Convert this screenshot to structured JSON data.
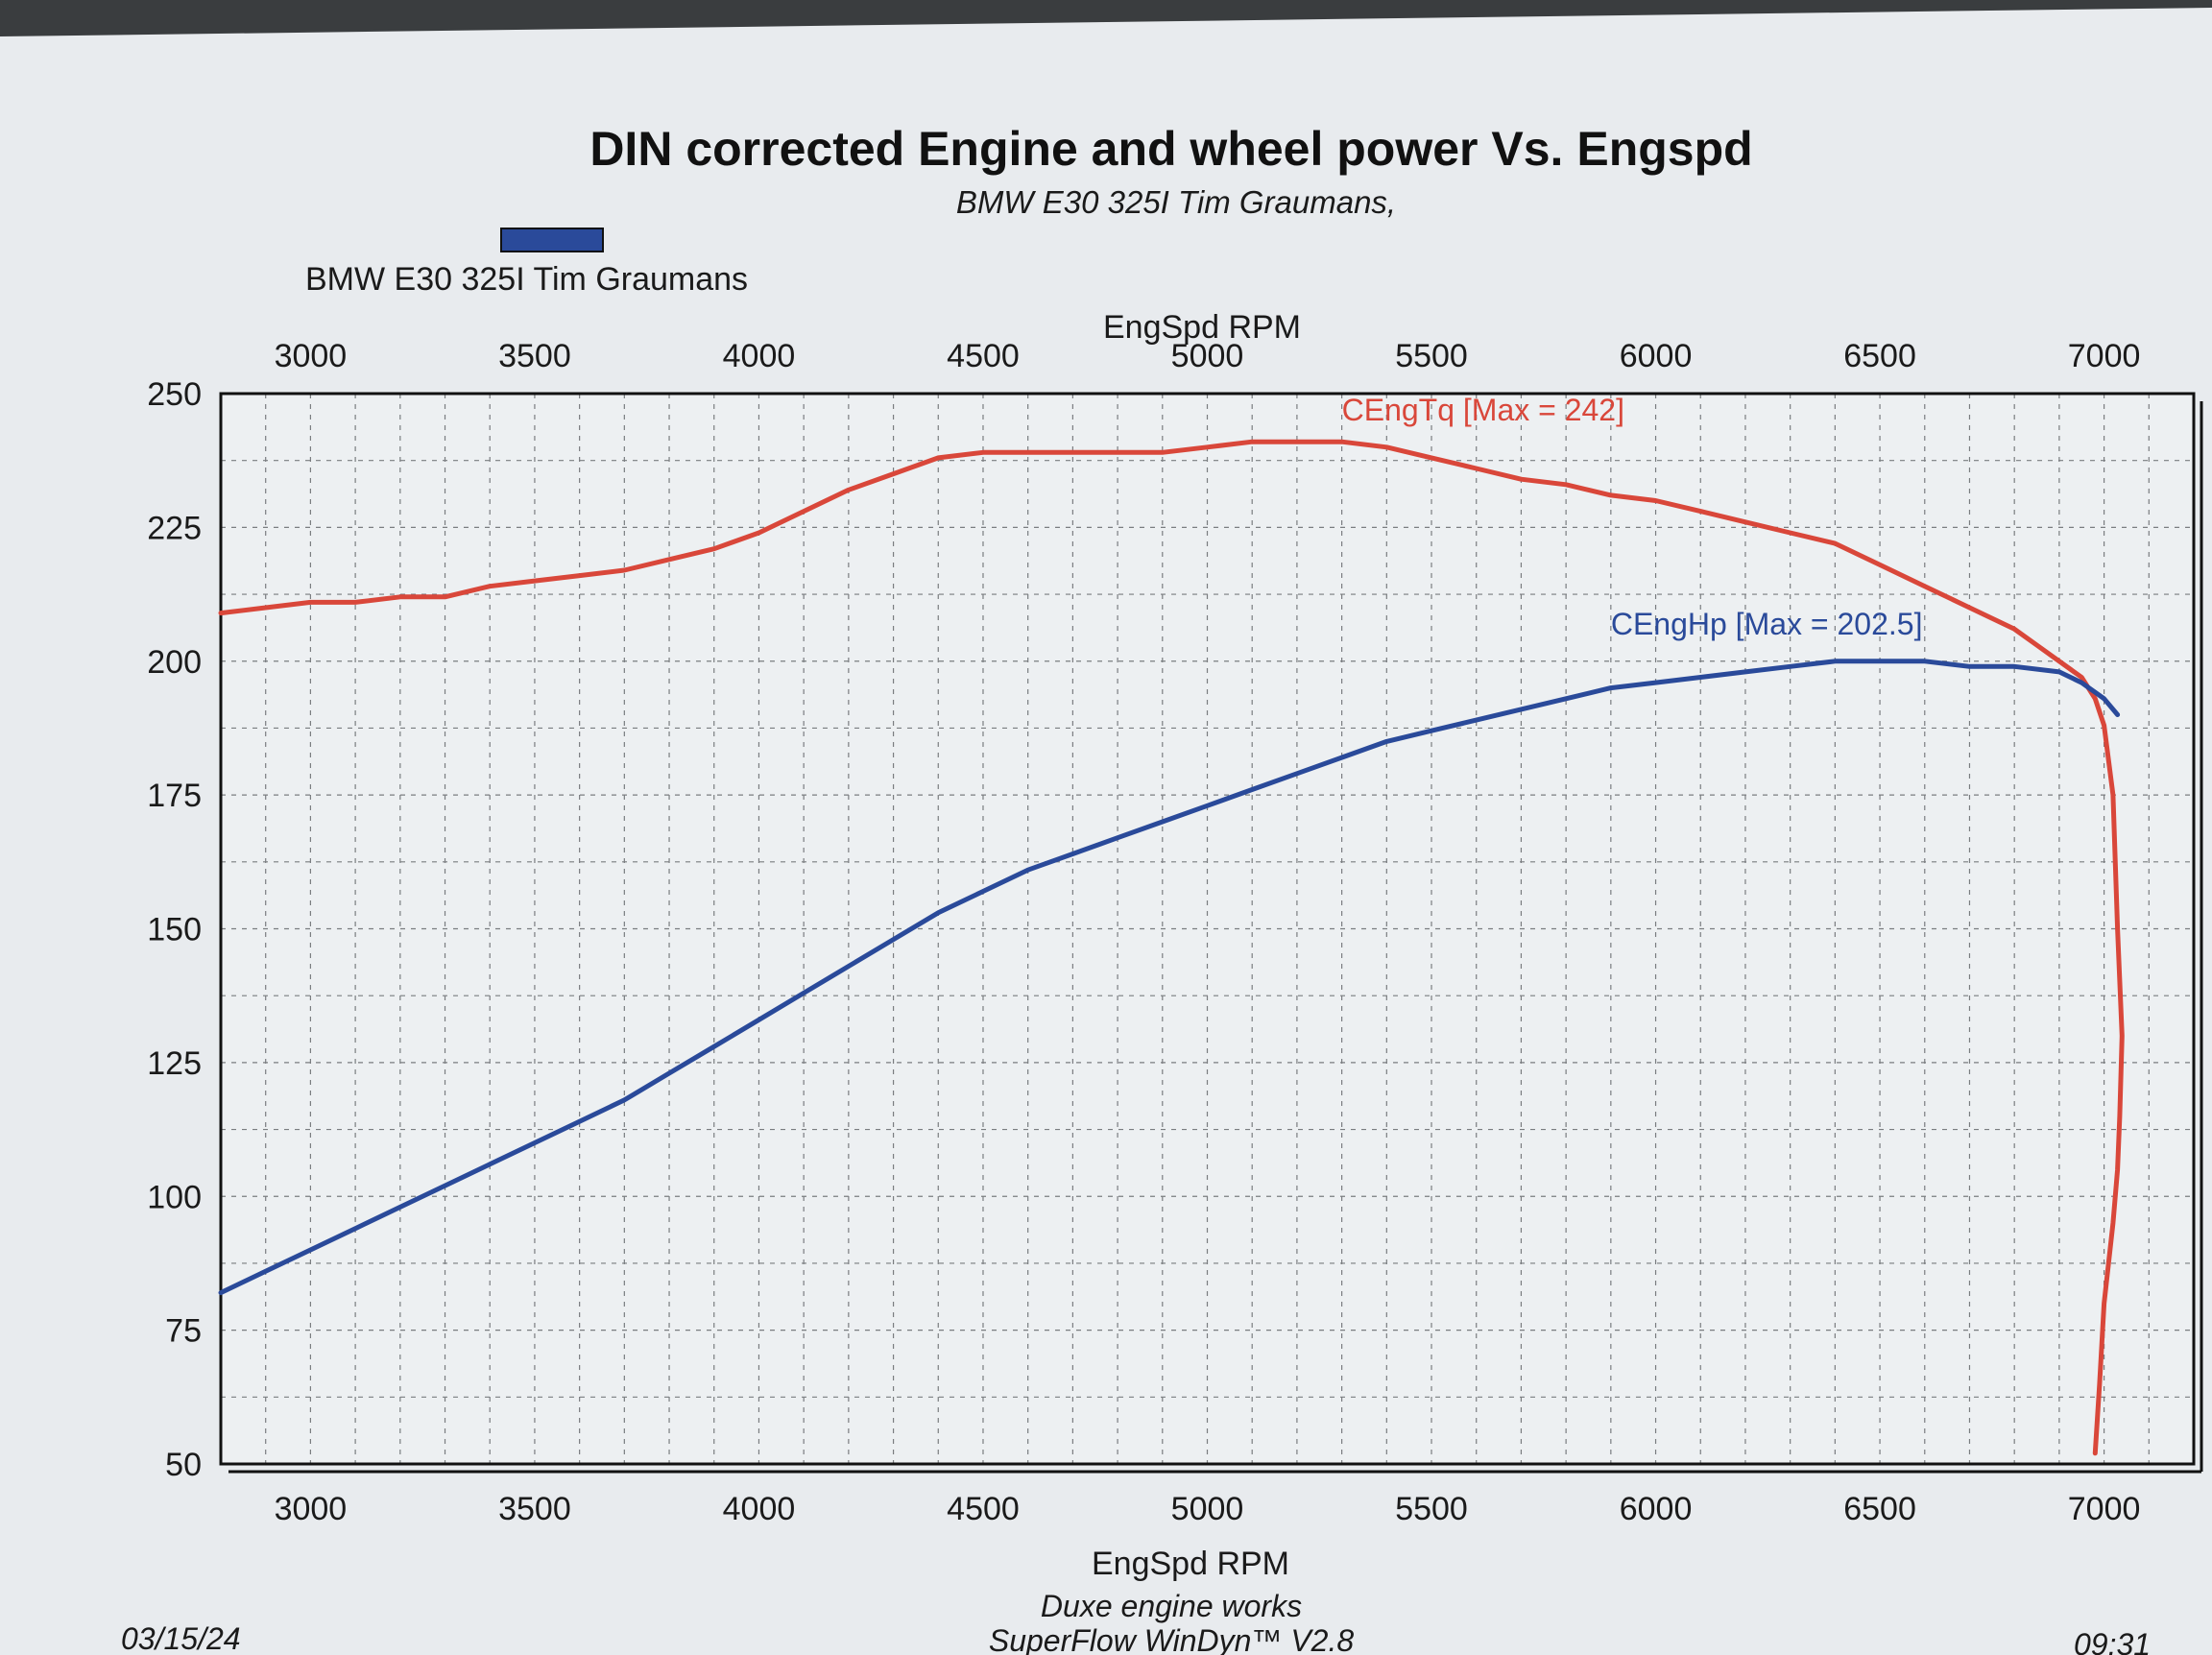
{
  "chart_data": {
    "type": "line",
    "title": "DIN corrected Engine and wheel power Vs. Engspd",
    "subtitle": "BMW E30 325I Tim Graumans,",
    "legend": [
      {
        "label": "BMW E30 325I Tim Graumans",
        "color": "#2a4a9a"
      }
    ],
    "xlabel_top": "EngSpd  RPM",
    "xlabel_bottom": "EngSpd  RPM",
    "x_ticks": [
      "3000",
      "3500",
      "4000",
      "4500",
      "5000",
      "5500",
      "6000",
      "6500",
      "7000"
    ],
    "y_ticks": [
      "250",
      "225",
      "200",
      "175",
      "150",
      "125",
      "100",
      "75",
      "50"
    ],
    "xlim": [
      2800,
      7200
    ],
    "ylim": [
      50,
      250
    ],
    "grid": true,
    "series": [
      {
        "name": "CEngTq [Max = 242]",
        "color": "#d9473a",
        "x": [
          2800,
          2900,
          3000,
          3100,
          3200,
          3300,
          3400,
          3500,
          3600,
          3700,
          3800,
          3900,
          4000,
          4100,
          4200,
          4300,
          4400,
          4500,
          4600,
          4700,
          4800,
          4900,
          5000,
          5100,
          5200,
          5300,
          5400,
          5500,
          5600,
          5700,
          5800,
          5900,
          6000,
          6100,
          6200,
          6300,
          6400,
          6500,
          6600,
          6700,
          6800,
          6850,
          6900,
          6950,
          6980,
          7000,
          7020,
          7030,
          7040,
          7035,
          7030,
          7020,
          7000,
          6990,
          6980
        ],
        "y": [
          209,
          210,
          211,
          211,
          212,
          212,
          214,
          215,
          216,
          217,
          219,
          221,
          224,
          228,
          232,
          235,
          238,
          239,
          239,
          239,
          239,
          239,
          240,
          241,
          241,
          241,
          240,
          238,
          236,
          234,
          233,
          231,
          230,
          228,
          226,
          224,
          222,
          218,
          214,
          210,
          206,
          203,
          200,
          197,
          193,
          188,
          175,
          150,
          130,
          115,
          105,
          95,
          80,
          65,
          52
        ]
      },
      {
        "name": "CEngHp [Max = 202.5]",
        "color": "#2a4a9a",
        "x": [
          2800,
          2900,
          3000,
          3100,
          3200,
          3300,
          3400,
          3500,
          3600,
          3700,
          3800,
          3900,
          4000,
          4100,
          4200,
          4300,
          4400,
          4500,
          4600,
          4700,
          4800,
          4900,
          5000,
          5100,
          5200,
          5300,
          5400,
          5500,
          5600,
          5700,
          5800,
          5900,
          6000,
          6100,
          6200,
          6300,
          6400,
          6500,
          6600,
          6700,
          6800,
          6900,
          6950,
          7000,
          7030
        ],
        "y": [
          82,
          86,
          90,
          94,
          98,
          102,
          106,
          110,
          114,
          118,
          123,
          128,
          133,
          138,
          143,
          148,
          153,
          157,
          161,
          164,
          167,
          170,
          173,
          176,
          179,
          182,
          185,
          187,
          189,
          191,
          193,
          195,
          196,
          197,
          198,
          199,
          200,
          200,
          200,
          199,
          199,
          198,
          196,
          193,
          190
        ]
      }
    ],
    "annotations": [
      {
        "text": "CEngTq [Max = 242]",
        "series": 0,
        "x": 5300,
        "y": 245
      },
      {
        "text": "CEngHp [Max = 202.5]",
        "series": 1,
        "x": 5900,
        "y": 205
      }
    ]
  },
  "footer": {
    "date": "03/15/24",
    "line1": "Duxe engine works",
    "line2": "SuperFlow WinDyn™ V2.8",
    "time": "09:31"
  }
}
